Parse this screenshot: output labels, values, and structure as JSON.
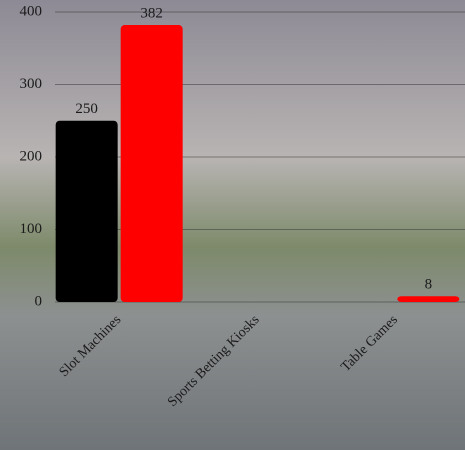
{
  "chart_data": {
    "type": "bar",
    "categories": [
      "Slot Machines",
      "Sports Betting Kiosks",
      "Table Games"
    ],
    "series": [
      {
        "color": "#000000",
        "values": [
          250,
          null,
          null
        ]
      },
      {
        "color": "#ff0000",
        "values": [
          382,
          null,
          8
        ]
      }
    ],
    "ylim": [
      0,
      400
    ],
    "yticks": [
      0,
      100,
      200,
      300,
      400
    ],
    "grid": true
  }
}
